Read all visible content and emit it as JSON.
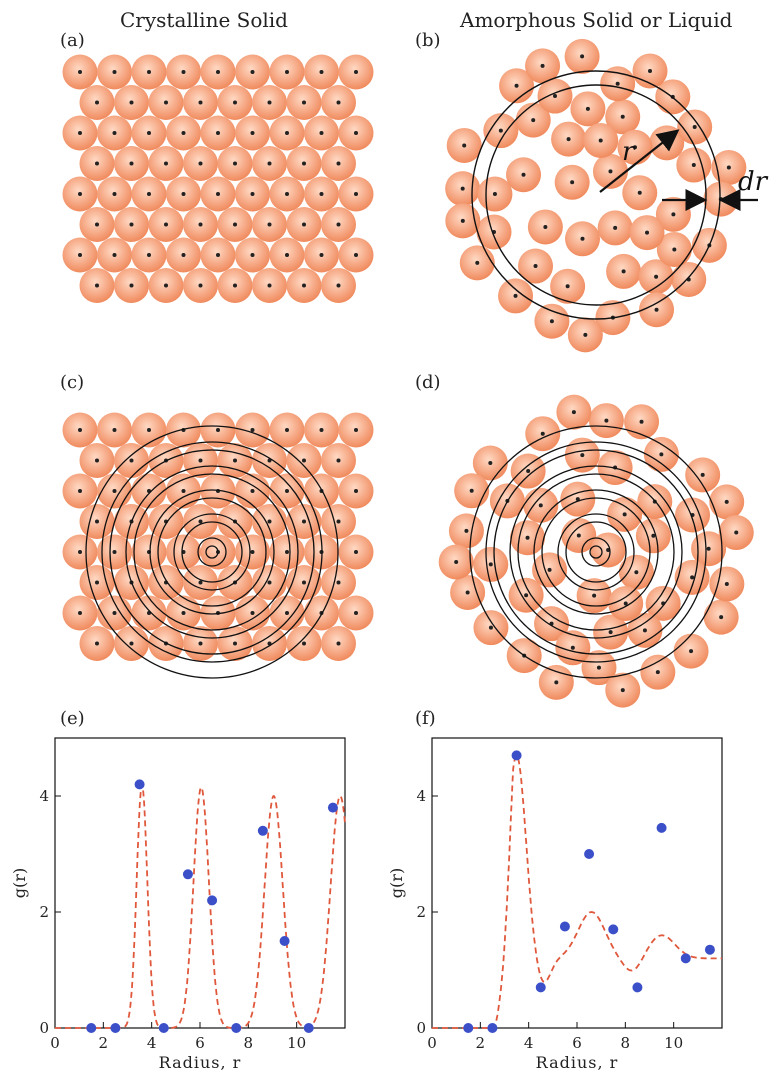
{
  "header": {
    "left_title": "Crystalline Solid",
    "right_title": "Amorphous Solid or Liquid"
  },
  "panels": {
    "a": {
      "label": "(a)"
    },
    "b": {
      "label": "(b)",
      "r_label": "r",
      "dr_label": "dr"
    },
    "c": {
      "label": "(c)"
    },
    "d": {
      "label": "(d)"
    },
    "e": {
      "label": "(e)"
    },
    "f": {
      "label": "(f)"
    }
  },
  "colors": {
    "particle": "#f08a5d",
    "particle_light": "#ffd9c4",
    "curve": "#e0583c",
    "point": "#3b4fc9",
    "ring": "#111111"
  },
  "chart_data": [
    {
      "type": "scatter",
      "panel": "e",
      "xlabel": "Radius, r",
      "ylabel": "g(r)",
      "xlim": [
        0,
        12
      ],
      "ylim": [
        0,
        5
      ],
      "xticks": [
        0,
        2,
        4,
        6,
        8,
        10
      ],
      "yticks": [
        0,
        2,
        4
      ],
      "points": [
        [
          1.5,
          0
        ],
        [
          2.5,
          0
        ],
        [
          3.5,
          4.2
        ],
        [
          4.5,
          0
        ],
        [
          5.5,
          2.65
        ],
        [
          6.5,
          2.2
        ],
        [
          7.5,
          0
        ],
        [
          8.6,
          3.4
        ],
        [
          9.5,
          1.5
        ],
        [
          10.5,
          0
        ],
        [
          11.5,
          3.8
        ]
      ],
      "curve": {
        "style": "dashed",
        "peaks": [
          [
            3.6,
            4.2,
            0.22
          ],
          [
            6.05,
            4.15,
            0.32
          ],
          [
            9.05,
            4.0,
            0.38
          ],
          [
            11.8,
            4.0,
            0.4
          ]
        ],
        "baseline": 0
      }
    },
    {
      "type": "scatter",
      "panel": "f",
      "xlabel": "Radius, r",
      "ylabel": "g(r)",
      "xlim": [
        0,
        12
      ],
      "ylim": [
        0,
        5
      ],
      "xticks": [
        0,
        2,
        4,
        6,
        8,
        10
      ],
      "yticks": [
        0,
        2,
        4
      ],
      "points": [
        [
          1.5,
          0
        ],
        [
          2.5,
          0
        ],
        [
          3.5,
          4.7
        ],
        [
          4.5,
          0.7
        ],
        [
          5.5,
          1.75
        ],
        [
          6.5,
          3.0
        ],
        [
          7.5,
          1.7
        ],
        [
          8.5,
          0.7
        ],
        [
          9.5,
          3.45
        ],
        [
          10.5,
          1.2
        ],
        [
          11.5,
          1.35
        ]
      ],
      "curve": {
        "style": "dashed",
        "peaks": [
          [
            3.5,
            4.7,
            0.38
          ],
          [
            6.6,
            2.0,
            0.55
          ],
          [
            9.5,
            1.6,
            0.55
          ]
        ],
        "baseline": 1.2
      }
    }
  ]
}
